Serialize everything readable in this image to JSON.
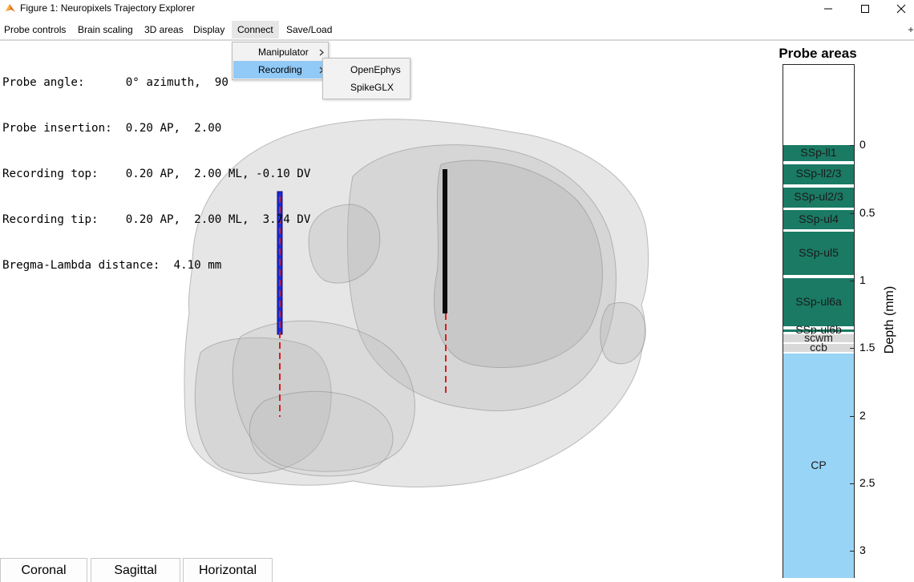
{
  "window": {
    "title": "Figure 1: Neuropixels Trajectory Explorer",
    "minimize_icon": "minimize-icon",
    "maximize_icon": "maximize-icon",
    "close_icon": "close-icon"
  },
  "menubar": {
    "items": [
      "Probe controls",
      "Brain scaling",
      "3D areas",
      "Display",
      "Connect",
      "Save/Load"
    ],
    "active": "Connect"
  },
  "connect_menu": {
    "items": [
      {
        "label": "Manipulator",
        "submenu_icon": "chevron-right-icon"
      },
      {
        "label": "Recording",
        "submenu_icon": "chevron-right-icon"
      }
    ],
    "highlighted": "Recording"
  },
  "recording_submenu": {
    "items": [
      "OpenEphys",
      "SpikeGLX"
    ]
  },
  "info": {
    "lines": [
      "Probe angle:      0° azimuth,  90",
      "Probe insertion:  0.20 AP,  2.00",
      "Recording top:    0.20 AP,  2.00 ML, -0.10 DV",
      "Recording tip:    0.20 AP,  2.00 ML,  3.74 DV",
      "Bregma-Lambda distance:  4.10 mm"
    ]
  },
  "view_buttons": [
    "Coronal",
    "Sagittal",
    "Horizontal"
  ],
  "probe_areas": {
    "title": "Probe areas",
    "ylabel": "Depth (mm)",
    "ylim": [
      -0.6,
      3.2
    ],
    "ticks": [
      "0",
      "0.5",
      "1",
      "1.5",
      "2",
      "2.5",
      "3"
    ],
    "tick_values": [
      0,
      0.5,
      1,
      1.5,
      2,
      2.5,
      3
    ],
    "colors": {
      "ssp": "#1a7a64",
      "white_matter": "#d9d9d9",
      "cp": "#98d4f6",
      "empty": "#ffffff"
    },
    "areas": [
      {
        "label": "SSp-ll1",
        "start": 0.0,
        "end": 0.12,
        "color": "ssp"
      },
      {
        "label": "SSp-ll2/3",
        "start": 0.14,
        "end": 0.29,
        "color": "ssp"
      },
      {
        "label": "SSp-ul2/3",
        "start": 0.31,
        "end": 0.46,
        "color": "ssp"
      },
      {
        "label": "SSp-ul4",
        "start": 0.48,
        "end": 0.62,
        "color": "ssp"
      },
      {
        "label": "SSp-ul5",
        "start": 0.64,
        "end": 0.96,
        "color": "ssp"
      },
      {
        "label": "SSp-ul6a",
        "start": 0.98,
        "end": 1.34,
        "color": "ssp"
      },
      {
        "label": "SSp-ul6b",
        "start": 1.36,
        "end": 1.38,
        "color": "ssp"
      },
      {
        "label": "scwm",
        "start": 1.4,
        "end": 1.46,
        "color": "white_matter"
      },
      {
        "label": "ccb",
        "start": 1.47,
        "end": 1.53,
        "color": "white_matter"
      },
      {
        "label": "CP",
        "start": 1.54,
        "end": 3.2,
        "color": "cp"
      }
    ]
  }
}
